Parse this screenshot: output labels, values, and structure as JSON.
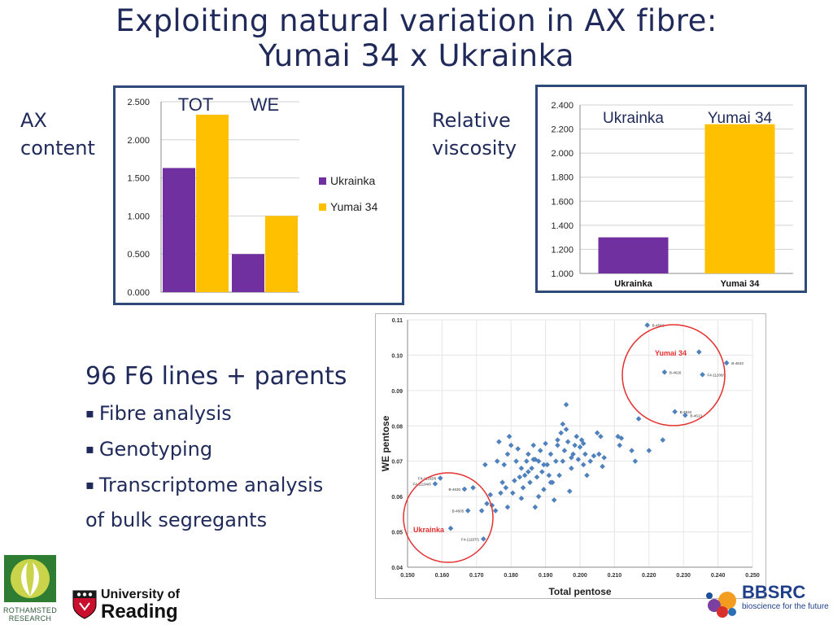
{
  "slide": {
    "title_line1": "Exploiting natural variation in AX fibre:",
    "title_line2": "Yumai 34 x Ukrainka",
    "ax_label_1": "AX",
    "ax_label_2": "content",
    "visc_label_1": "Relative",
    "visc_label_2": "viscosity",
    "bullets_head": "96 F6 lines + parents",
    "bullet_marker": "▪",
    "bullets": [
      "Fibre analysis",
      "Genotyping",
      "Transcriptome analysis"
    ],
    "bullets_tail": "of bulk segregants"
  },
  "colors": {
    "ukrainka": "#7030a0",
    "yumai": "#ffc000",
    "scatter": "#4f81bd",
    "circle": "#e53030",
    "title": "#1f2a5a"
  },
  "logos": {
    "rothamsted_1": "ROTHAMSTED",
    "rothamsted_2": "RESEARCH",
    "reading_1": "University of",
    "reading_2": "Reading",
    "bbsrc_1": "BBSRC",
    "bbsrc_2": "bioscience for the future"
  },
  "chart_data": [
    {
      "type": "bar",
      "categories": [
        "TOT",
        "WE"
      ],
      "series": [
        {
          "name": "Ukrainka",
          "values": [
            1.63,
            0.5
          ]
        },
        {
          "name": "Yumai 34",
          "values": [
            2.33,
            1.0
          ]
        }
      ],
      "ylim": [
        0,
        2.5
      ],
      "yticks": [
        "0.000",
        "0.500",
        "1.000",
        "1.500",
        "2.000",
        "2.500"
      ],
      "legend": "right"
    },
    {
      "type": "bar",
      "categories": [
        "Ukrainka",
        "Yumai 34"
      ],
      "values": [
        1.3,
        2.24
      ],
      "ylim": [
        1.0,
        2.4
      ],
      "yticks": [
        "1.000",
        "1.200",
        "1.400",
        "1.600",
        "1.800",
        "2.000",
        "2.200",
        "2.400"
      ],
      "top_labels": [
        "Ukrainka",
        "Yumai 34"
      ]
    },
    {
      "type": "scatter",
      "xlabel": "Total pentose",
      "ylabel": "WE pentose",
      "xlim": [
        0.15,
        0.25
      ],
      "ylim": [
        0.04,
        0.11
      ],
      "xticks": [
        "0.150",
        "0.160",
        "0.170",
        "0.180",
        "0.190",
        "0.200",
        "0.210",
        "0.220",
        "0.230",
        "0.240",
        "0.250"
      ],
      "yticks": [
        "0.04",
        "0.05",
        "0.06",
        "0.07",
        "0.08",
        "0.09",
        "0.10",
        "0.11"
      ],
      "circle_labels": [
        "Yumai 34",
        "Ukrainka"
      ],
      "labeled_points": [
        {
          "label": "B-4582",
          "x": 0.2195,
          "y": 0.1085
        },
        {
          "label": "B-4643",
          "x": 0.2425,
          "y": 0.0978
        },
        {
          "label": "B-4626",
          "x": 0.2245,
          "y": 0.0952
        },
        {
          "label": "F4-11208/1",
          "x": 0.2355,
          "y": 0.0945
        },
        {
          "label": "B-4634",
          "x": 0.2275,
          "y": 0.084
        },
        {
          "label": "B-4613",
          "x": 0.2305,
          "y": 0.083
        },
        {
          "label": "F4-11193/6",
          "x": 0.1595,
          "y": 0.0652
        },
        {
          "label": "F4-11194/6",
          "x": 0.158,
          "y": 0.0636
        },
        {
          "label": "B-4630",
          "x": 0.1665,
          "y": 0.0621
        },
        {
          "label": "B-4605",
          "x": 0.1675,
          "y": 0.056
        },
        {
          "label": "F4-11197/1",
          "x": 0.172,
          "y": 0.048
        }
      ],
      "points": [
        [
          0.2345,
          0.1009
        ],
        [
          0.1625,
          0.051
        ],
        [
          0.169,
          0.0625
        ],
        [
          0.1715,
          0.056
        ],
        [
          0.173,
          0.058
        ],
        [
          0.1725,
          0.069
        ],
        [
          0.174,
          0.0605
        ],
        [
          0.1745,
          0.0575
        ],
        [
          0.1755,
          0.056
        ],
        [
          0.176,
          0.07
        ],
        [
          0.1765,
          0.0755
        ],
        [
          0.177,
          0.061
        ],
        [
          0.1775,
          0.064
        ],
        [
          0.178,
          0.069
        ],
        [
          0.179,
          0.072
        ],
        [
          0.1795,
          0.077
        ],
        [
          0.18,
          0.0745
        ],
        [
          0.1805,
          0.061
        ],
        [
          0.181,
          0.0645
        ],
        [
          0.1815,
          0.07
        ],
        [
          0.182,
          0.0735
        ],
        [
          0.1825,
          0.0655
        ],
        [
          0.183,
          0.0595
        ],
        [
          0.1835,
          0.0625
        ],
        [
          0.184,
          0.066
        ],
        [
          0.1845,
          0.07
        ],
        [
          0.185,
          0.072
        ],
        [
          0.1855,
          0.064
        ],
        [
          0.186,
          0.068
        ],
        [
          0.1865,
          0.0705
        ],
        [
          0.187,
          0.057
        ],
        [
          0.1875,
          0.0655
        ],
        [
          0.188,
          0.07
        ],
        [
          0.1885,
          0.073
        ],
        [
          0.189,
          0.067
        ],
        [
          0.1895,
          0.062
        ],
        [
          0.19,
          0.075
        ],
        [
          0.1905,
          0.069
        ],
        [
          0.191,
          0.066
        ],
        [
          0.1915,
          0.072
        ],
        [
          0.192,
          0.064
        ],
        [
          0.1925,
          0.059
        ],
        [
          0.193,
          0.07
        ],
        [
          0.1935,
          0.0745
        ],
        [
          0.194,
          0.066
        ],
        [
          0.1945,
          0.078
        ],
        [
          0.195,
          0.0805
        ],
        [
          0.1955,
          0.073
        ],
        [
          0.196,
          0.086
        ],
        [
          0.1965,
          0.0755
        ],
        [
          0.197,
          0.0615
        ],
        [
          0.1975,
          0.068
        ],
        [
          0.198,
          0.072
        ],
        [
          0.1985,
          0.0745
        ],
        [
          0.199,
          0.077
        ],
        [
          0.1995,
          0.0705
        ],
        [
          0.2,
          0.074
        ],
        [
          0.2005,
          0.076
        ],
        [
          0.201,
          0.069
        ],
        [
          0.2015,
          0.072
        ],
        [
          0.202,
          0.066
        ],
        [
          0.203,
          0.07
        ],
        [
          0.204,
          0.0715
        ],
        [
          0.205,
          0.078
        ],
        [
          0.2055,
          0.072
        ],
        [
          0.206,
          0.077
        ],
        [
          0.2065,
          0.0685
        ],
        [
          0.207,
          0.071
        ],
        [
          0.211,
          0.077
        ],
        [
          0.2115,
          0.0745
        ],
        [
          0.212,
          0.0765
        ],
        [
          0.215,
          0.073
        ],
        [
          0.216,
          0.07
        ],
        [
          0.217,
          0.082
        ],
        [
          0.22,
          0.073
        ],
        [
          0.224,
          0.076
        ],
        [
          0.188,
          0.06
        ],
        [
          0.179,
          0.057
        ],
        [
          0.196,
          0.079
        ],
        [
          0.1975,
          0.071
        ],
        [
          0.1865,
          0.0745
        ],
        [
          0.185,
          0.067
        ],
        [
          0.1935,
          0.076
        ],
        [
          0.1895,
          0.069
        ],
        [
          0.195,
          0.07
        ],
        [
          0.1915,
          0.064
        ],
        [
          0.201,
          0.075
        ],
        [
          0.183,
          0.068
        ],
        [
          0.1785,
          0.0625
        ],
        [
          0.187,
          0.0705
        ]
      ]
    }
  ]
}
